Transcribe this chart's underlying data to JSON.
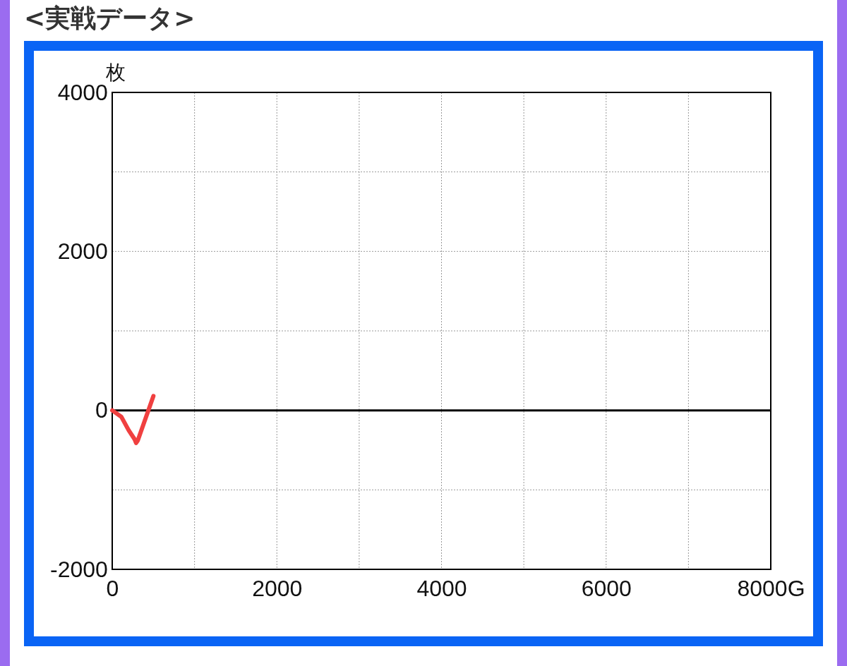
{
  "chart_data": {
    "type": "line",
    "title": "<実戦データ>",
    "ylabel": "枚",
    "x": [
      0,
      110,
      200,
      270,
      290,
      310,
      500
    ],
    "series": [
      {
        "color": "#f04040",
        "values": [
          0,
          -80,
          -250,
          -360,
          -410,
          -380,
          180
        ]
      }
    ],
    "xlim": [
      0,
      8000
    ],
    "xticks": [
      0,
      {
        "value": 1000,
        "label": null
      },
      2000,
      {
        "value": 3000,
        "label": null
      },
      4000,
      {
        "value": 5000,
        "label": null
      },
      6000,
      {
        "value": 7000,
        "label": null
      },
      {
        "value": 8000,
        "label": "8000G"
      }
    ],
    "ylim": [
      -2000,
      4000
    ],
    "yticks": [
      -2000,
      {
        "value": -1000,
        "label": null
      },
      0,
      {
        "value": 1000,
        "label": null
      },
      2000,
      {
        "value": 3000,
        "label": null
      },
      4000
    ],
    "grid": true,
    "marker": "none",
    "line_style": "solid",
    "ref_lines": [
      {
        "axis": "y",
        "value": 0,
        "color": "#000000"
      }
    ]
  }
}
